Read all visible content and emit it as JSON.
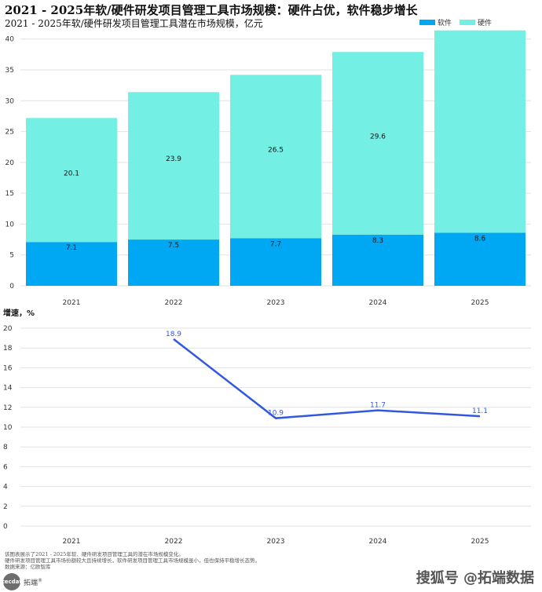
{
  "title": "2021 - 2025年软/硬件研发项目管理工具市场规模：硬件占优，软件稳步增长",
  "subtitle": "2021 - 2025年软/硬件研发项目管理工具潜在市场规模，亿元",
  "growth_label": "增速，%",
  "footnotes": [
    "该图表展示了2021 - 2025年软、硬件研发项目管理工具的潜在市场规模变化。",
    "硬件研发项目管理工具市场份额较大且持续增长，软件研发项目管理工具市场规模虽小，但也保持平稳增长态势。",
    "数据来源：亿欧智库"
  ],
  "brand": {
    "logo": "tecdat",
    "name": "拓端",
    "mark": "®"
  },
  "watermark": "搜狐号 @拓端数据",
  "colors": {
    "software": "#00a8f3",
    "hardware": "#74efe4",
    "line": "#3358e0"
  },
  "chart_data": [
    {
      "type": "bar",
      "stacked": true,
      "categories": [
        "2021",
        "2022",
        "2023",
        "2024",
        "2025"
      ],
      "series": [
        {
          "name": "软件",
          "values": [
            7.1,
            7.5,
            7.7,
            8.3,
            8.6
          ]
        },
        {
          "name": "硬件",
          "values": [
            20.1,
            23.9,
            26.5,
            29.6,
            32.8
          ]
        }
      ],
      "ylim": [
        0,
        42
      ],
      "yticks": [
        0,
        5,
        10,
        15,
        20,
        25,
        30,
        35,
        40
      ],
      "data_labels": {
        "软件": [
          "7.1",
          "7.5",
          "7.7",
          "8.3",
          "8.6"
        ],
        "硬件": [
          "20.1",
          "23.9",
          "26.5",
          "29.6",
          ""
        ]
      },
      "grid": true,
      "legend": "top-right"
    },
    {
      "type": "line",
      "categories": [
        "2021",
        "2022",
        "2023",
        "2024",
        "2025"
      ],
      "series": [
        {
          "values": [
            null,
            18.9,
            10.9,
            11.7,
            11.1
          ]
        }
      ],
      "ylim": [
        0,
        20
      ],
      "yticks": [
        0,
        2,
        4,
        6,
        8,
        10,
        12,
        14,
        16,
        18,
        20
      ],
      "grid": true
    }
  ]
}
